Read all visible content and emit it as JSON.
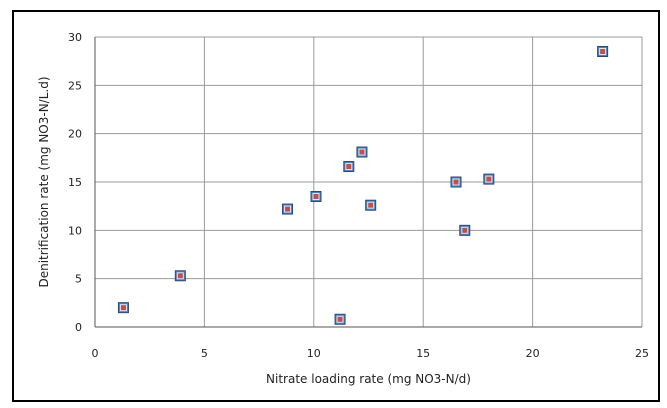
{
  "chart_data": {
    "type": "scatter",
    "xlabel": "Nitrate loading rate (mg NO3-N/d)",
    "ylabel": "Denitrification rate (mg NO3-N/L.d)",
    "xlim": [
      0,
      25
    ],
    "ylim": [
      0,
      30
    ],
    "x_ticks": [
      0,
      5,
      10,
      15,
      20,
      25
    ],
    "y_ticks": [
      0,
      5,
      10,
      15,
      20,
      25,
      30
    ],
    "grid": true,
    "marker_color": "#4f81bd",
    "marker_accent": "#c0504d",
    "points": [
      {
        "x": 1.3,
        "y": 2.0
      },
      {
        "x": 3.9,
        "y": 5.3
      },
      {
        "x": 8.8,
        "y": 12.2
      },
      {
        "x": 10.1,
        "y": 13.5
      },
      {
        "x": 11.2,
        "y": 0.8
      },
      {
        "x": 11.6,
        "y": 16.6
      },
      {
        "x": 12.2,
        "y": 18.1
      },
      {
        "x": 12.6,
        "y": 12.6
      },
      {
        "x": 16.5,
        "y": 15.0
      },
      {
        "x": 16.9,
        "y": 10.0
      },
      {
        "x": 18.0,
        "y": 15.3
      },
      {
        "x": 23.2,
        "y": 28.5
      }
    ]
  }
}
